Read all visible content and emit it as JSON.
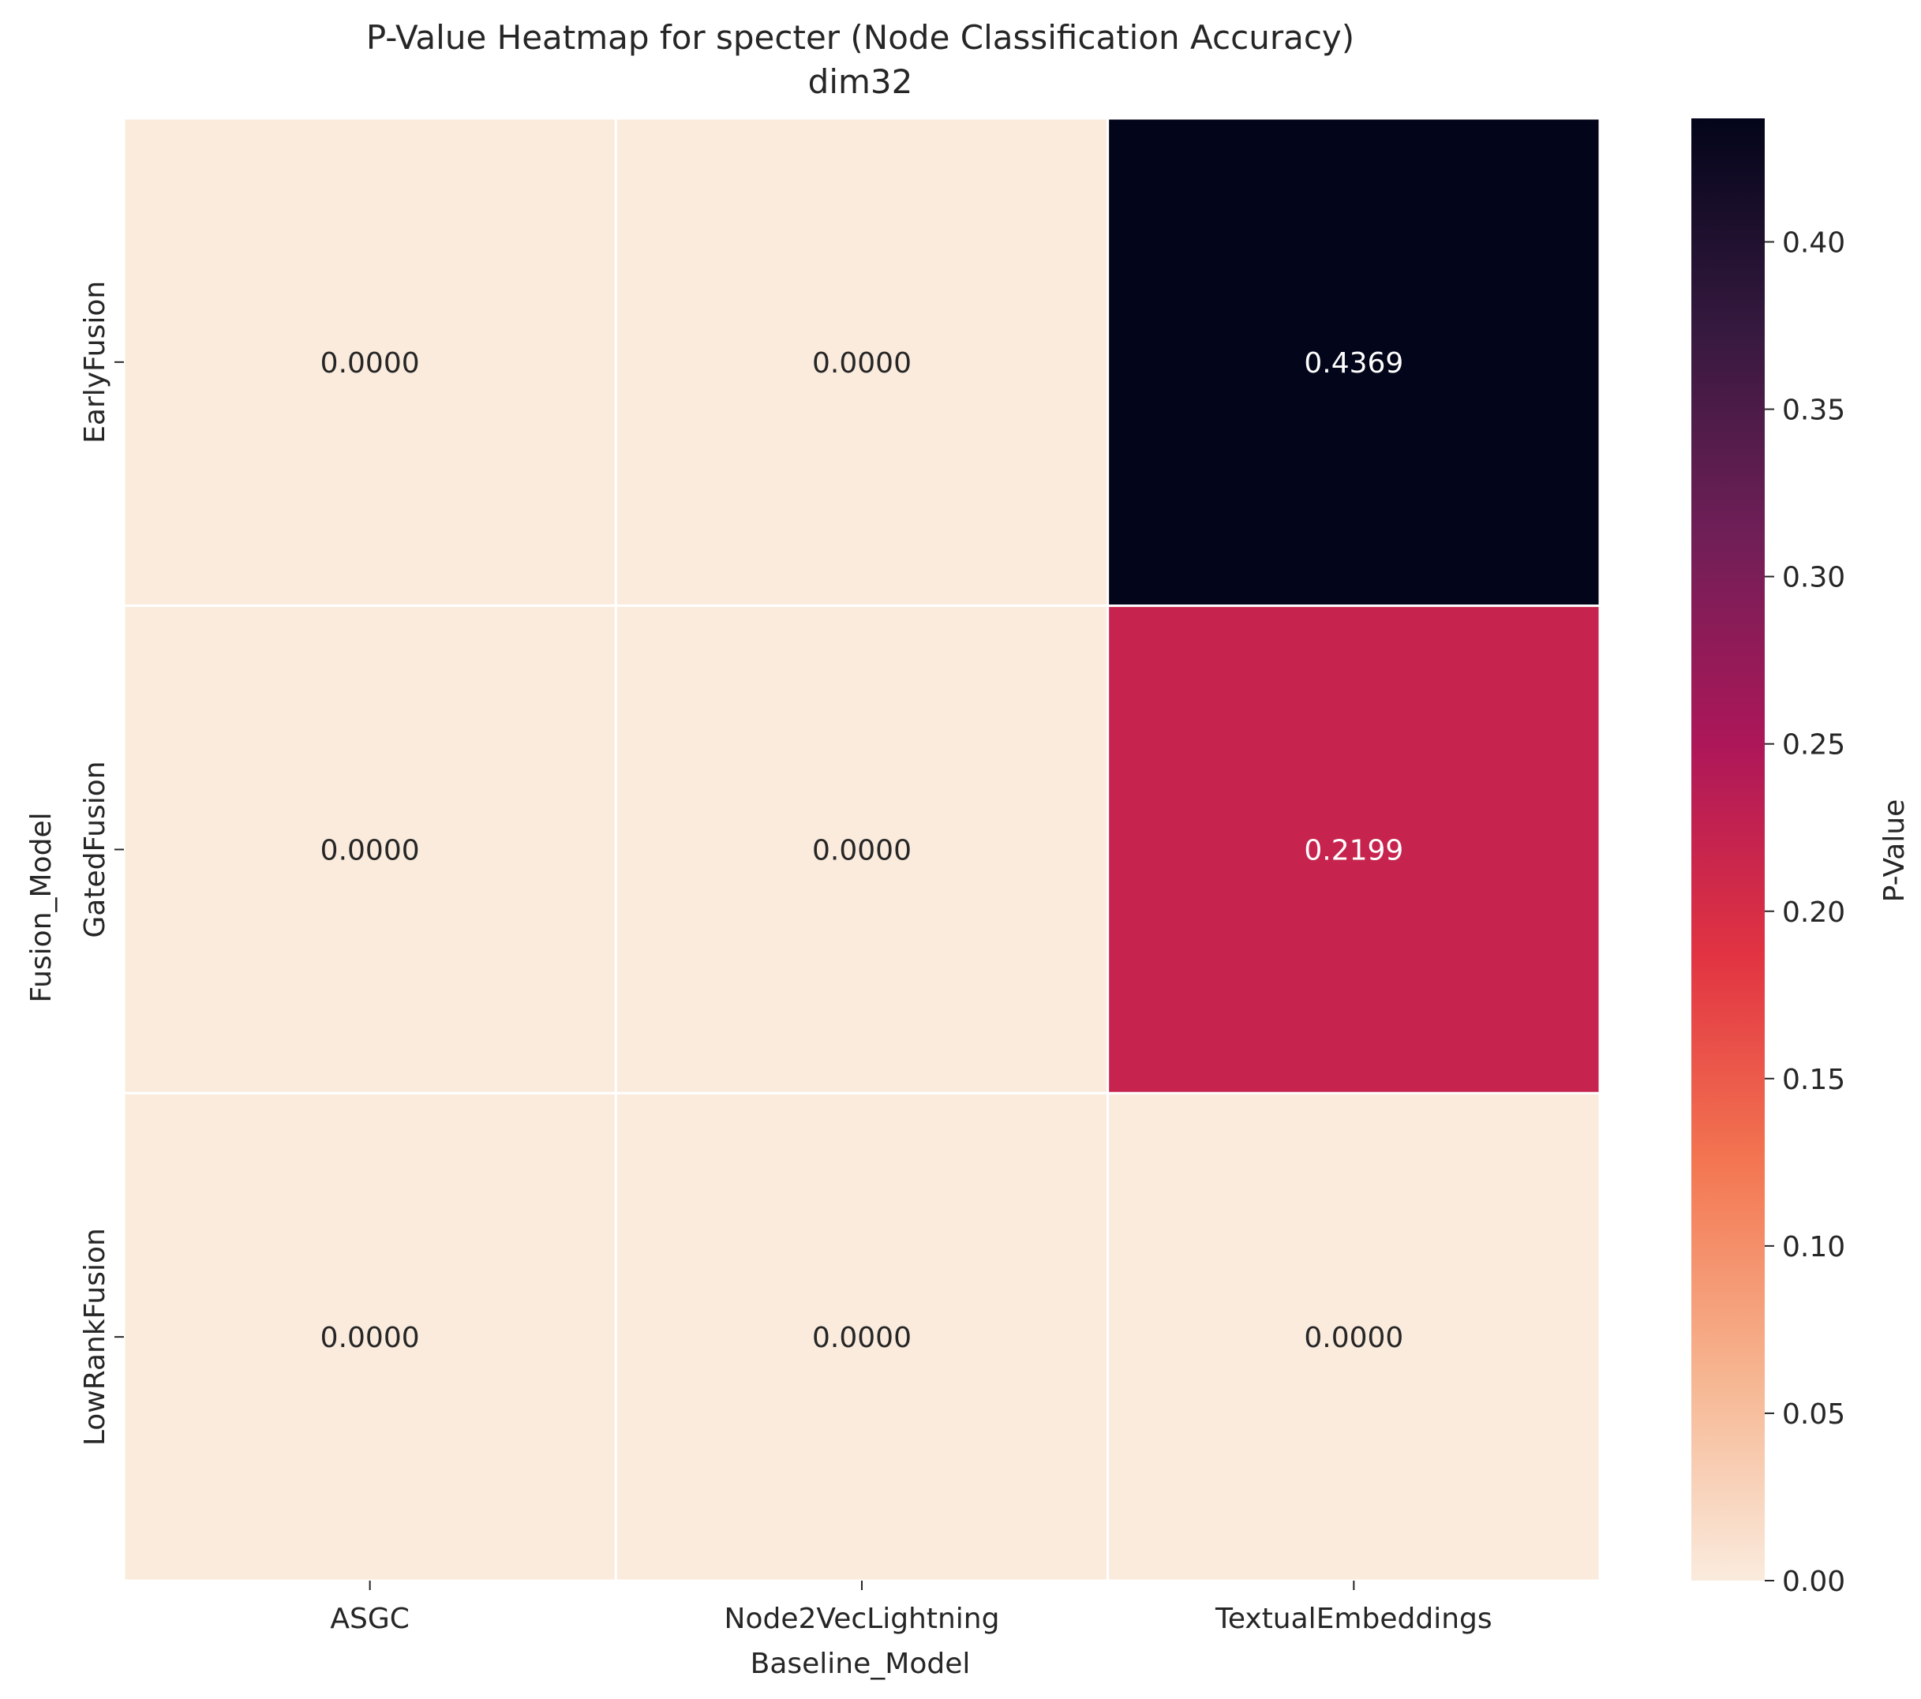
{
  "chart_data": {
    "type": "heatmap",
    "title": "P-Value Heatmap for specter (Node Classification Accuracy)",
    "subtitle": "dim32",
    "xlabel": "Baseline_Model",
    "ylabel": "Fusion_Model",
    "x_categories": [
      "ASGC",
      "Node2VecLightning",
      "TextualEmbeddings"
    ],
    "y_categories": [
      "EarlyFusion",
      "GatedFusion",
      "LowRankFusion"
    ],
    "values": [
      [
        0.0,
        0.0,
        0.4369
      ],
      [
        0.0,
        0.0,
        0.2199
      ],
      [
        0.0,
        0.0,
        0.0
      ]
    ],
    "cell_labels": [
      [
        "0.0000",
        "0.0000",
        "0.4369"
      ],
      [
        "0.0000",
        "0.0000",
        "0.2199"
      ],
      [
        "0.0000",
        "0.0000",
        "0.0000"
      ]
    ],
    "colorbar": {
      "label": "P-Value",
      "range": [
        0.0,
        0.4369
      ],
      "ticks": [
        0.0,
        0.05,
        0.1,
        0.15,
        0.2,
        0.25,
        0.3,
        0.35,
        0.4
      ],
      "tick_labels": [
        "0.00",
        "0.05",
        "0.10",
        "0.15",
        "0.20",
        "0.25",
        "0.30",
        "0.35",
        "0.40"
      ],
      "colormap": "rocket_r",
      "colors": [
        "#faebdd",
        "#f6b48f",
        "#f37651",
        "#e13342",
        "#ad1759",
        "#701f57",
        "#35193e",
        "#03051a"
      ]
    },
    "grid": false
  }
}
